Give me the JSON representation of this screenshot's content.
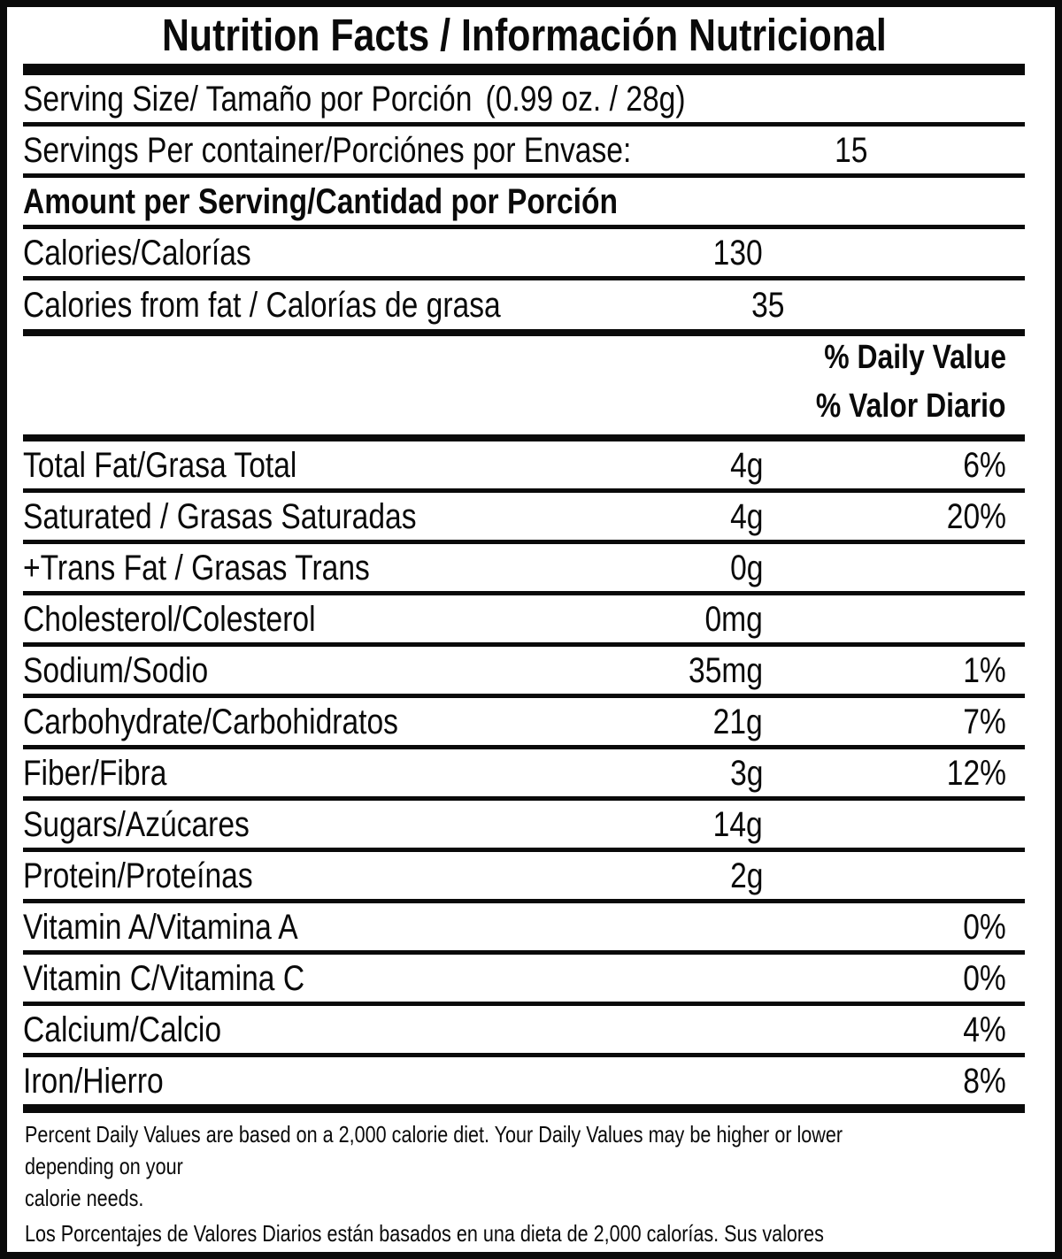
{
  "colors": {
    "ink": "#0a0a0a",
    "background": "#ffffff"
  },
  "label": {
    "title": "Nutrition Facts / Información Nutricional",
    "serving_size": {
      "label": "Serving Size/ Tamaño por Porción",
      "value": "(0.99 oz. / 28g)"
    },
    "servings_per_container": {
      "label": "Servings Per container/Porciónes por Envase:",
      "value": "15"
    },
    "amount_per_serving": "Amount per Serving/Cantidad por Porción",
    "calories": {
      "label": "Calories/Calorías",
      "value": "130"
    },
    "calories_from_fat": {
      "label": "Calories from fat / Calorías de grasa",
      "value": "35"
    },
    "daily_value_header": {
      "line1": "% Daily Value",
      "line2": "% Valor Diario"
    },
    "nutrients": [
      {
        "label": "Total Fat/Grasa Total",
        "amount": "4g",
        "dv": "6%"
      },
      {
        "label": "Saturated / Grasas Saturadas",
        "amount": "4g",
        "dv": "20%"
      },
      {
        "label": "+Trans Fat / Grasas Trans",
        "amount": "0g",
        "dv": ""
      },
      {
        "label": "Cholesterol/Colesterol",
        "amount": "0mg",
        "dv": ""
      },
      {
        "label": "Sodium/Sodio",
        "amount": "35mg",
        "dv": "1%"
      },
      {
        "label": "Carbohydrate/Carbohidratos",
        "amount": "21g",
        "dv": "7%"
      },
      {
        "label": "Fiber/Fibra",
        "amount": "3g",
        "dv": "12%"
      },
      {
        "label": "Sugars/Azúcares",
        "amount": "14g",
        "dv": ""
      },
      {
        "label": "Protein/Proteínas",
        "amount": "2g",
        "dv": ""
      },
      {
        "label": "Vitamin A/Vitamina A",
        "amount": "",
        "dv": "0%"
      },
      {
        "label": "Vitamin C/Vitamina C",
        "amount": "",
        "dv": "0%"
      },
      {
        "label": "Calcium/Calcio",
        "amount": "",
        "dv": "4%"
      },
      {
        "label": "Iron/Hierro",
        "amount": "",
        "dv": "8%"
      }
    ],
    "footnote_en": "Percent Daily Values are based on a 2,000 calorie diet. Your Daily Values may be higher or lower depending on your\ncalorie needs.",
    "footnote_es": "Los Porcentajes de Valores Diarios están basados en una dieta de 2,000 calorías. Sus valores diarios pueden ser\nmayores o menores dependiendo de sus necesidades calóricas"
  }
}
